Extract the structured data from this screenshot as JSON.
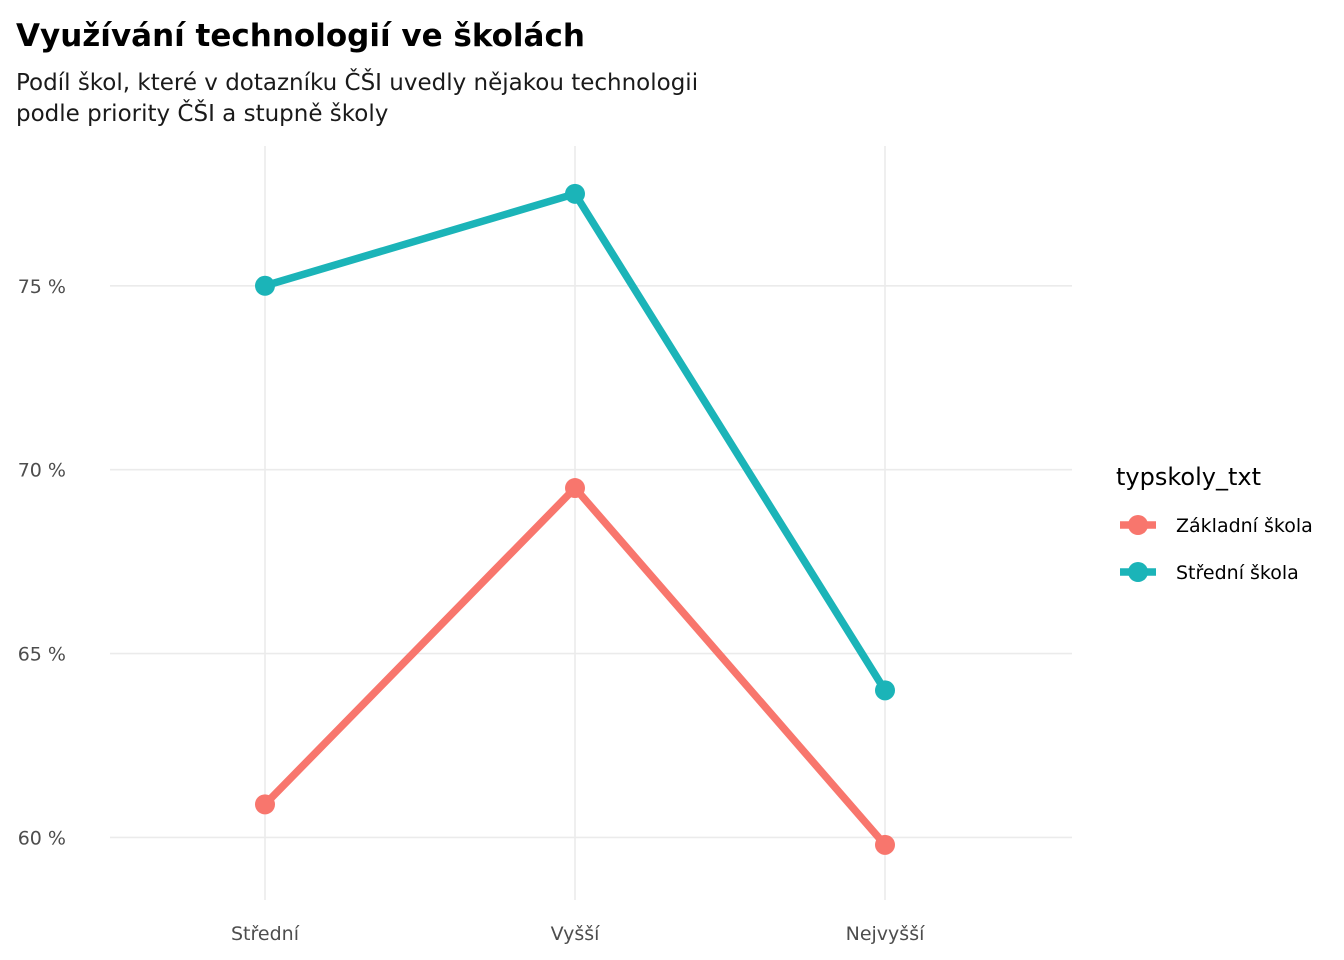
{
  "chart_data": {
    "type": "line",
    "title": "Využívání technologií ve školách",
    "subtitle_lines": [
      "Podíl škol, které v dotazníku ČŠI uvedly nějakou technologii",
      "podle priority ČŠI a stupně školy"
    ],
    "categories": [
      "Střední",
      "Vyšší",
      "Nejvyšší"
    ],
    "ylim": [
      58.3,
      78.8
    ],
    "yticks": [
      60,
      65,
      70,
      75
    ],
    "ytick_labels": [
      "60 %",
      "65 %",
      "70 %",
      "75 %"
    ],
    "xlabel": "",
    "ylabel": "",
    "grid": true,
    "legend": {
      "title": "typskoly_txt",
      "position": "right"
    },
    "series": [
      {
        "name": "Základní škola",
        "color": "#F8766D",
        "values": [
          60.9,
          69.5,
          59.8
        ]
      },
      {
        "name": "Střední škola",
        "color": "#1BB4B8",
        "values": [
          75.0,
          77.5,
          64.0
        ]
      }
    ]
  }
}
